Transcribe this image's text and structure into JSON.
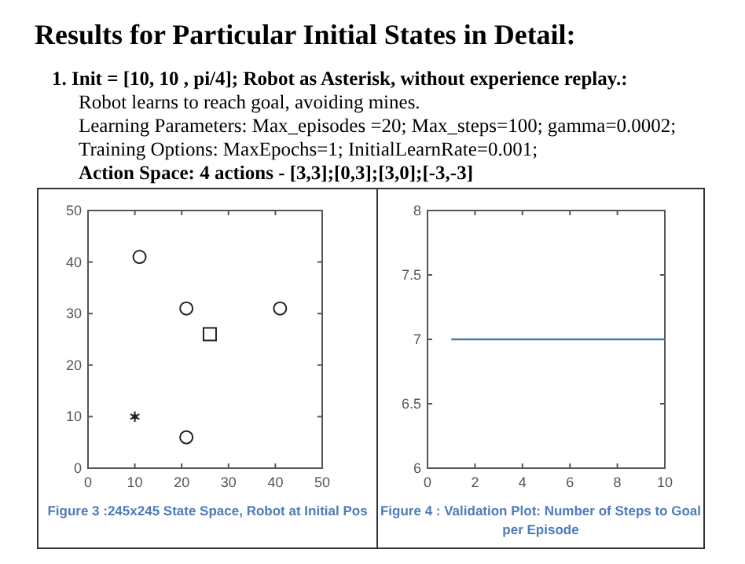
{
  "chart_data": [
    {
      "type": "scatter",
      "title": "Results for Particular Initial States in Detail:",
      "subtitle": "1. Init = [10, 10 , pi/4]; Robot as Asterisk, without experience replay.:",
      "annotations": [
        "Robot learns to reach goal, avoiding mines.",
        "Learning Parameters: Max_episodes =20;  Max_steps=100; gamma=0.0002;",
        "Training Options: MaxEpochs=1; InitialLearnRate=0.001;",
        "Action Space: 4 actions - [3,3];[0,3];[3,0];[-3,-3]",
        "Figure 3 :245x245 State Space, Robot at Initial Pos"
      ],
      "xlim": [
        0,
        50
      ],
      "xticks": [
        0,
        10,
        20,
        30,
        40,
        50
      ],
      "ylim": [
        0,
        50
      ],
      "yticks": [
        0,
        10,
        20,
        30,
        40,
        50
      ],
      "grid": false,
      "series": [
        {
          "color": "#222222",
          "marker": "circle",
          "x": [
            11,
            21,
            41,
            21
          ],
          "values": [
            41,
            31,
            31,
            6
          ]
        },
        {
          "color": "#222222",
          "marker": "square",
          "x": [
            26
          ],
          "values": [
            26
          ]
        },
        {
          "color": "#222222",
          "marker": "cross",
          "x": [
            10
          ],
          "values": [
            10
          ]
        }
      ]
    },
    {
      "type": "line",
      "annotations": [
        "Figure 4 : Validation Plot: Number of Steps to Goal per Episode"
      ],
      "xlim": [
        0,
        10
      ],
      "xticks": [
        0,
        2,
        4,
        6,
        8,
        10
      ],
      "ylim": [
        6,
        8
      ],
      "yticks": [
        6,
        6.5,
        7,
        7.5,
        8
      ],
      "grid": false,
      "series": [
        {
          "color": "#4a7ca8",
          "x": [
            1,
            2,
            3,
            4,
            5,
            6,
            7,
            8,
            9,
            10
          ],
          "values": [
            7,
            7,
            7,
            7,
            7,
            7,
            7,
            7,
            7,
            7
          ]
        }
      ]
    }
  ]
}
